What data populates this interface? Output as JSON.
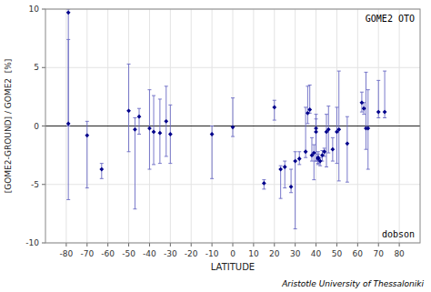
{
  "chart_data": {
    "type": "scatter",
    "x_label": "LATITUDE",
    "y_label": "[GOME2-GROUND] / GOME2  [%]",
    "annotations": [
      "GOME2 OTO",
      "dobson",
      "Aristotle University of Thessaloniki"
    ],
    "color": "#00008B",
    "marker": "diamond",
    "grid": true,
    "xlim": [
      -90,
      90
    ],
    "ylim": [
      -10,
      10
    ],
    "xticks": [
      -80,
      -70,
      -60,
      -50,
      -40,
      -30,
      -20,
      -10,
      0,
      10,
      20,
      30,
      40,
      50,
      60,
      70,
      80
    ],
    "yticks": [
      -10,
      -5,
      0,
      5,
      10
    ],
    "x": [
      -79,
      -79,
      -70,
      -63,
      -50,
      -47,
      -45,
      -40,
      -38,
      -35,
      -32,
      -30,
      -10,
      0,
      15,
      20,
      23,
      25,
      28,
      30,
      32,
      35,
      36,
      37,
      38,
      39,
      40,
      40,
      41,
      41,
      42,
      43,
      44,
      45,
      46,
      48,
      50,
      51,
      55,
      62,
      63,
      64,
      65,
      70,
      73
    ],
    "values": [
      9.7,
      0.2,
      -0.8,
      -3.7,
      1.3,
      -0.3,
      0.8,
      -0.2,
      -0.5,
      -0.6,
      0.4,
      -0.7,
      -0.7,
      -0.1,
      -4.9,
      1.6,
      -3.7,
      -3.5,
      -5.2,
      -3.0,
      -2.8,
      -2.2,
      1.1,
      1.4,
      -2.5,
      -2.3,
      -0.2,
      -0.5,
      -2.8,
      -2.7,
      -3.0,
      -2.5,
      -2.2,
      -0.5,
      -0.3,
      -2.0,
      -0.5,
      -0.3,
      -1.5,
      2.0,
      1.5,
      -0.2,
      -0.2,
      1.2,
      1.2
    ],
    "error_low": [
      9.7,
      6.5,
      4.5,
      0.8,
      3.5,
      6.8,
      1.5,
      3.5,
      2.8,
      2.6,
      3.0,
      2.5,
      3.8,
      0.8,
      0.5,
      1.1,
      2.5,
      1.8,
      0.5,
      5.8,
      0.5,
      0.5,
      0.9,
      0.3,
      0.5,
      2.3,
      2.8,
      2.5,
      0.5,
      0.5,
      0.4,
      0.5,
      0.4,
      3.0,
      2.0,
      1.0,
      2.7,
      4.4,
      3.3,
      0.8,
      0.5,
      1.8,
      3.5,
      0.5,
      0.5
    ],
    "error_high": [
      0.3,
      7.2,
      1.2,
      0.5,
      4.0,
      1.0,
      0.7,
      3.3,
      3.1,
      2.9,
      3.0,
      2.5,
      0.7,
      2.5,
      0.3,
      0.6,
      0.3,
      0.5,
      1.5,
      0.8,
      0.6,
      3.8,
      2.3,
      2.1,
      1.5,
      0.7,
      0.8,
      1.5,
      0.4,
      0.5,
      0.3,
      0.4,
      0.3,
      1.5,
      2.0,
      1.0,
      2.1,
      5.0,
      2.3,
      0.9,
      0.5,
      4.8,
      3.3,
      2.7,
      3.5
    ]
  }
}
